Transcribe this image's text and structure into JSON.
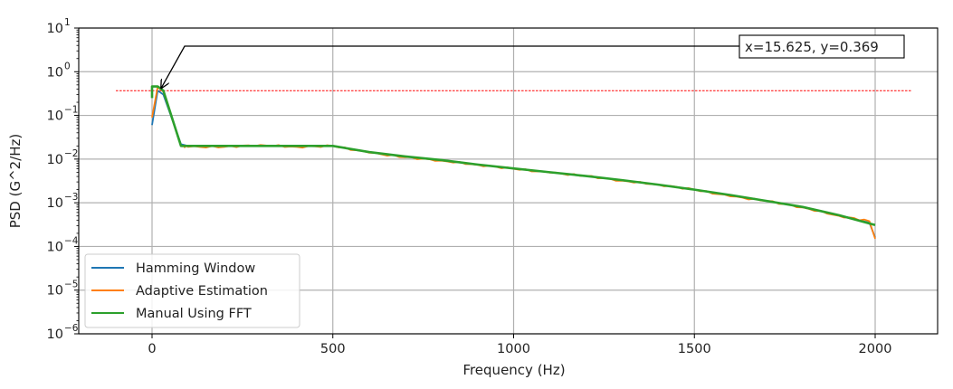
{
  "chart_data": {
    "type": "line",
    "title": "",
    "xlabel": "Frequency (Hz)",
    "ylabel": "PSD (G^2/Hz)",
    "xscale": "linear",
    "yscale": "log",
    "xlim": [
      -200,
      2170
    ],
    "ylim": [
      1e-06,
      10
    ],
    "grid": true,
    "legend_position": "lower left",
    "x_ticks": [
      0,
      500,
      1000,
      1500,
      2000
    ],
    "x_tick_labels": [
      "0",
      "500",
      "1000",
      "1500",
      "2000"
    ],
    "y_ticks": [
      1e-06,
      1e-05,
      0.0001,
      0.001,
      0.01,
      0.1,
      1,
      10
    ],
    "y_tick_labels": [
      {
        "base": "10",
        "exp": "−6"
      },
      {
        "base": "10",
        "exp": "−5"
      },
      {
        "base": "10",
        "exp": "−4"
      },
      {
        "base": "10",
        "exp": "−3"
      },
      {
        "base": "10",
        "exp": "−2"
      },
      {
        "base": "10",
        "exp": "−1"
      },
      {
        "base": "10",
        "exp": "0"
      },
      {
        "base": "10",
        "exp": "1"
      }
    ],
    "series": [
      {
        "name": "Hamming Window",
        "color": "#1f77b4",
        "x": [
          0,
          15.625,
          31.25,
          80,
          100,
          200,
          300,
          400,
          500,
          600,
          700,
          800,
          900,
          1000,
          1100,
          1200,
          1300,
          1400,
          1500,
          1600,
          1700,
          1800,
          1900,
          1984,
          2000
        ],
        "y": [
          0.06,
          0.37,
          0.3,
          0.022,
          0.02,
          0.02,
          0.02,
          0.02,
          0.02,
          0.0145,
          0.0115,
          0.0095,
          0.0075,
          0.0061,
          0.005,
          0.0041,
          0.0033,
          0.0026,
          0.002,
          0.0015,
          0.0011,
          0.0008,
          0.00052,
          0.00035,
          0.00016
        ]
      },
      {
        "name": "Adaptive Estimation",
        "color": "#ff7f0e",
        "x": [
          0,
          15.625,
          31.25,
          80,
          100,
          200,
          300,
          400,
          500,
          600,
          700,
          800,
          900,
          1000,
          1100,
          1200,
          1300,
          1400,
          1500,
          1600,
          1700,
          1800,
          1900,
          1984,
          2000
        ],
        "y": [
          0.09,
          0.45,
          0.35,
          0.02,
          0.019,
          0.019,
          0.021,
          0.019,
          0.02,
          0.014,
          0.011,
          0.0092,
          0.0074,
          0.006,
          0.0049,
          0.0041,
          0.0032,
          0.0026,
          0.002,
          0.0014,
          0.0011,
          0.00078,
          0.0005,
          0.00038,
          0.00015
        ]
      },
      {
        "name": "Manual Using FFT",
        "color": "#2ca02c",
        "x": [
          0,
          0,
          15.625,
          31.25,
          80,
          100,
          200,
          300,
          400,
          500,
          600,
          700,
          800,
          900,
          1000,
          1100,
          1200,
          1300,
          1400,
          1500,
          1600,
          1700,
          1800,
          1900,
          2000
        ],
        "y": [
          0.25,
          0.46,
          0.46,
          0.37,
          0.02,
          0.02,
          0.02,
          0.02,
          0.02,
          0.02,
          0.0145,
          0.0115,
          0.0095,
          0.0075,
          0.0061,
          0.005,
          0.0041,
          0.0033,
          0.0026,
          0.002,
          0.0015,
          0.0011,
          0.0008,
          0.00052,
          0.00031
        ]
      }
    ],
    "reference_line": {
      "type": "horizontal",
      "y": 0.369,
      "x_range": [
        -100,
        2100
      ],
      "color": "#ff0000",
      "style": "dashed"
    },
    "annotations": [
      {
        "text": "x=15.625, y=0.369",
        "point": {
          "x": 15.625,
          "y": 0.369
        },
        "arrow": true
      }
    ]
  }
}
